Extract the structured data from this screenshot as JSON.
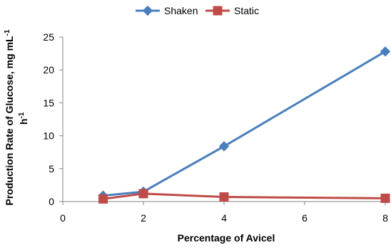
{
  "chart_data": {
    "type": "line",
    "xlabel": "Percentage of Avicel",
    "ylabel_main": "Production Rate of Glucose, mg mL",
    "ylabel_sup1": "-1",
    "ylabel_line2": "h",
    "ylabel_sup2": "-1",
    "xlim": [
      0,
      8
    ],
    "ylim": [
      0,
      25
    ],
    "xticks": [
      0,
      2,
      4,
      6,
      8
    ],
    "yticks": [
      0,
      5,
      10,
      15,
      20,
      25
    ],
    "grid": false,
    "legend_position": "top-center",
    "series": [
      {
        "name": "Shaken",
        "color": "#4a7ebb",
        "marker": "diamond",
        "x": [
          1,
          2,
          4,
          8
        ],
        "y": [
          0.9,
          1.5,
          8.4,
          22.8
        ]
      },
      {
        "name": "Static",
        "color": "#be4b48",
        "marker": "square",
        "x": [
          1,
          2,
          4,
          8
        ],
        "y": [
          0.4,
          1.2,
          0.7,
          0.5
        ]
      }
    ]
  }
}
